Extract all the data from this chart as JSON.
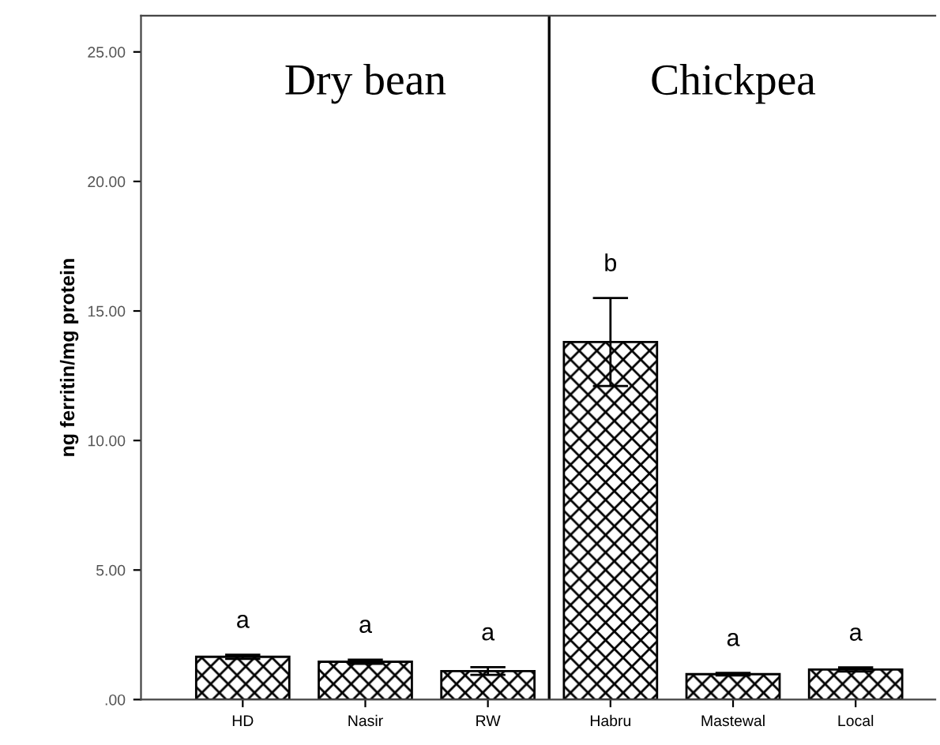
{
  "chart_data": {
    "type": "bar",
    "ylabel": "ng ferritin/mg protein",
    "categories": [
      "HD",
      "Nasir",
      "RW",
      "Habru",
      "Mastewal",
      "Local"
    ],
    "values": [
      1.65,
      1.46,
      1.1,
      13.8,
      0.98,
      1.16
    ],
    "errors": [
      0.08,
      0.08,
      0.15,
      1.7,
      0.05,
      0.08
    ],
    "color": "#000000",
    "ylim": [
      0,
      26.4
    ],
    "yticks": [
      {
        "value": 0,
        "label": ".00"
      },
      {
        "value": 5,
        "label": "5.00"
      },
      {
        "value": 10,
        "label": "10.00"
      },
      {
        "value": 15,
        "label": "15.00"
      },
      {
        "value": 20,
        "label": "20.00"
      },
      {
        "value": 25,
        "label": "25.00"
      }
    ],
    "annotations": [
      "Dry bean",
      "Chickpea",
      "a",
      "a",
      "a",
      "b",
      "a",
      "a"
    ],
    "grid": false,
    "legend": false
  }
}
